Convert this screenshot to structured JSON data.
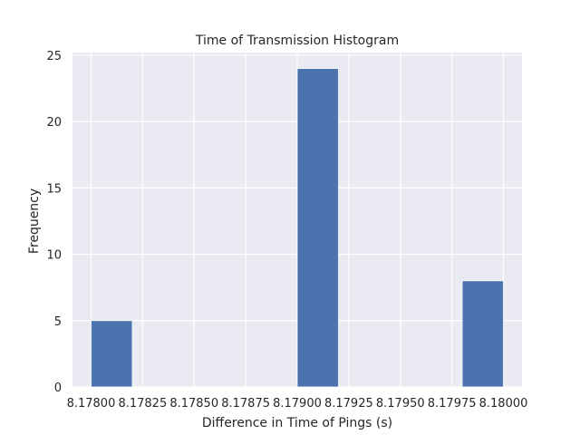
{
  "chart_data": {
    "type": "bar",
    "title": "Time of Transmission Histogram",
    "xlabel": "Difference in Time of Pings (s)",
    "ylabel": "Frequency",
    "xlim": [
      8.17791,
      8.18009
    ],
    "ylim": [
      0,
      25.2
    ],
    "grid": true,
    "colors": {
      "bar": "#4c72b0",
      "background": "#eaeaf2",
      "grid": "#ffffff"
    },
    "xticks": [
      8.178,
      8.17825,
      8.1785,
      8.17875,
      8.179,
      8.17925,
      8.1795,
      8.17975,
      8.18
    ],
    "xtick_labels": [
      "8.17800",
      "8.17825",
      "8.17850",
      "8.17875",
      "8.17900",
      "8.17925",
      "8.17950",
      "8.17975",
      "8.18000"
    ],
    "yticks": [
      0,
      5,
      10,
      15,
      20,
      25
    ],
    "ytick_labels": [
      "0",
      "5",
      "10",
      "15",
      "20",
      "25"
    ],
    "bins": [
      {
        "start": 8.178,
        "end": 8.1782,
        "count": 5
      },
      {
        "start": 8.1782,
        "end": 8.1784,
        "count": 0
      },
      {
        "start": 8.1784,
        "end": 8.1786,
        "count": 0
      },
      {
        "start": 8.1786,
        "end": 8.1788,
        "count": 0
      },
      {
        "start": 8.1788,
        "end": 8.179,
        "count": 0
      },
      {
        "start": 8.179,
        "end": 8.1792,
        "count": 24
      },
      {
        "start": 8.1792,
        "end": 8.1794,
        "count": 0
      },
      {
        "start": 8.1794,
        "end": 8.1796,
        "count": 0
      },
      {
        "start": 8.1796,
        "end": 8.1798,
        "count": 0
      },
      {
        "start": 8.1798,
        "end": 8.18,
        "count": 8
      }
    ]
  }
}
